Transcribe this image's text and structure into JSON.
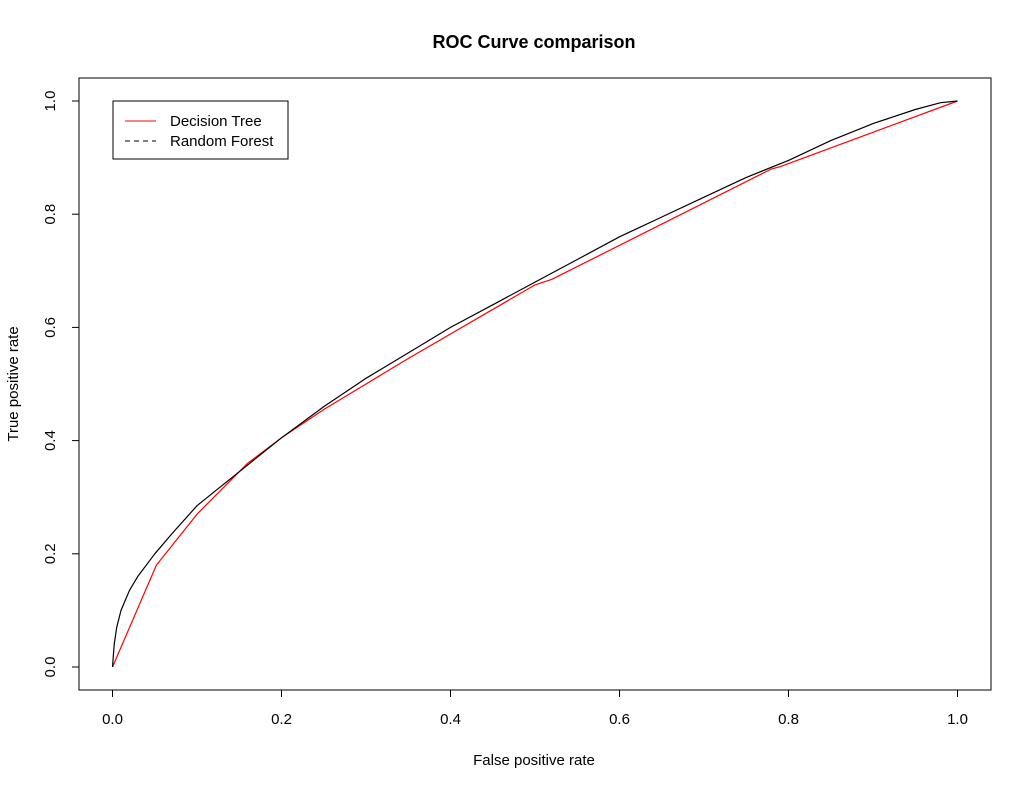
{
  "chart_data": {
    "type": "line",
    "title": "ROC Curve comparison",
    "xlabel": "False positive rate",
    "ylabel": "True positive rate",
    "xlim": [
      0,
      1
    ],
    "ylim": [
      0,
      1
    ],
    "x_ticks": [
      0.0,
      0.2,
      0.4,
      0.6,
      0.8,
      1.0
    ],
    "x_tick_labels": [
      "0.0",
      "0.2",
      "0.4",
      "0.6",
      "0.8",
      "1.0"
    ],
    "y_ticks": [
      0.0,
      0.2,
      0.4,
      0.6,
      0.8,
      1.0
    ],
    "y_tick_labels": [
      "0.0",
      "0.2",
      "0.4",
      "0.6",
      "0.8",
      "1.0"
    ],
    "grid": false,
    "legend": {
      "position": "top-left",
      "entries": [
        {
          "name": "Decision Tree",
          "color": "#ff0000",
          "style": "solid"
        },
        {
          "name": "Random Forest",
          "color": "#000000",
          "style": "dashed"
        }
      ]
    },
    "series": [
      {
        "name": "Decision Tree",
        "color": "#ff0000",
        "x": [
          0.0,
          0.052,
          0.1,
          0.16,
          0.2,
          0.25,
          0.35,
          0.5,
          0.52,
          0.78,
          0.79,
          1.0
        ],
        "y": [
          0.0,
          0.18,
          0.27,
          0.36,
          0.405,
          0.455,
          0.545,
          0.675,
          0.685,
          0.88,
          0.884,
          1.0
        ]
      },
      {
        "name": "Random Forest",
        "color": "#000000",
        "x": [
          0.0,
          0.002,
          0.005,
          0.01,
          0.02,
          0.03,
          0.05,
          0.07,
          0.1,
          0.15,
          0.2,
          0.25,
          0.3,
          0.35,
          0.4,
          0.45,
          0.5,
          0.55,
          0.6,
          0.65,
          0.7,
          0.75,
          0.8,
          0.85,
          0.9,
          0.95,
          0.98,
          1.0
        ],
        "y": [
          0.0,
          0.04,
          0.07,
          0.1,
          0.135,
          0.16,
          0.2,
          0.235,
          0.285,
          0.345,
          0.405,
          0.46,
          0.51,
          0.555,
          0.6,
          0.64,
          0.68,
          0.72,
          0.76,
          0.795,
          0.83,
          0.865,
          0.895,
          0.93,
          0.96,
          0.985,
          0.997,
          1.0
        ]
      }
    ]
  }
}
